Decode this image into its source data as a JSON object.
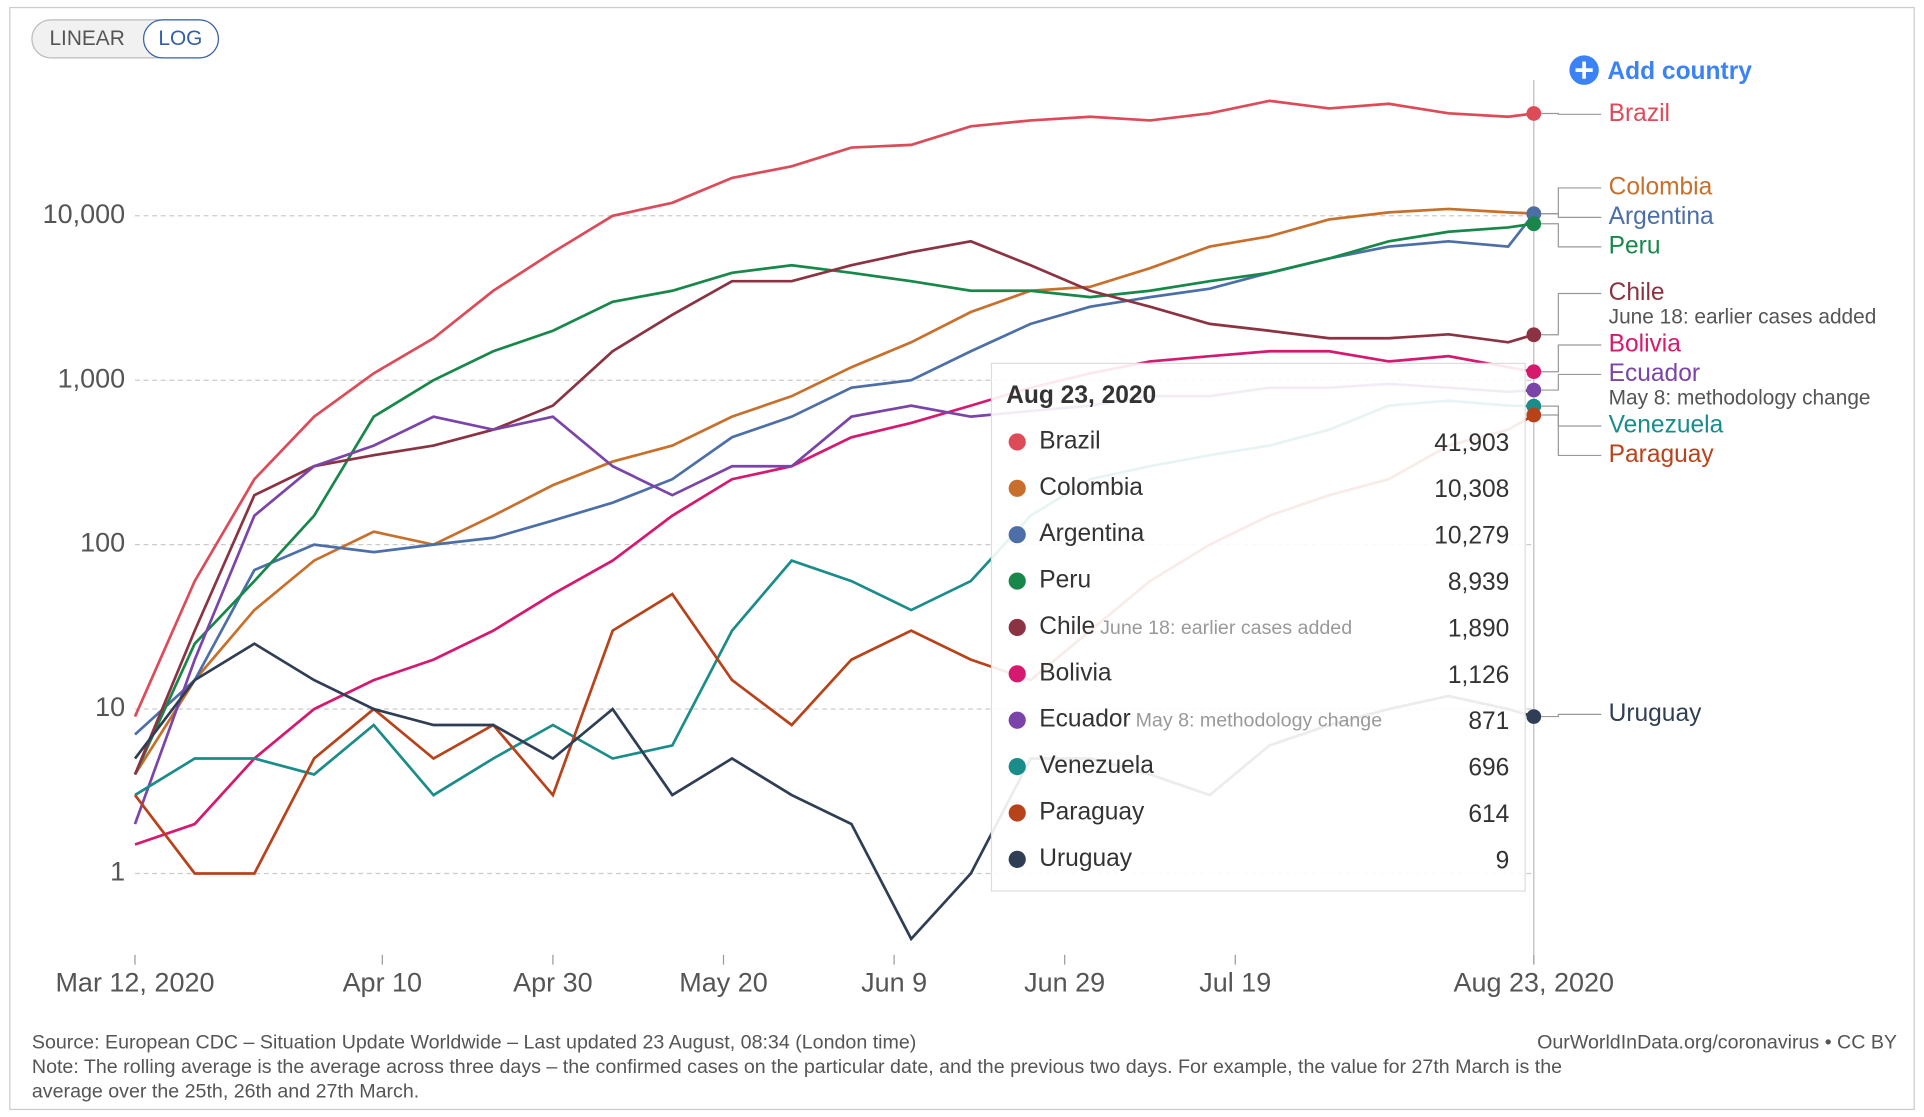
{
  "controls": {
    "linear": "LINEAR",
    "log": "LOG",
    "active": "log",
    "add_country": "Add country"
  },
  "chart_data": {
    "type": "line",
    "log_scale": true,
    "grid": true,
    "x": [
      "2020-03-12",
      "2020-03-19",
      "2020-03-26",
      "2020-04-02",
      "2020-04-09",
      "2020-04-16",
      "2020-04-23",
      "2020-04-30",
      "2020-05-07",
      "2020-05-14",
      "2020-05-21",
      "2020-05-28",
      "2020-06-04",
      "2020-06-11",
      "2020-06-18",
      "2020-06-25",
      "2020-07-02",
      "2020-07-09",
      "2020-07-16",
      "2020-07-23",
      "2020-07-30",
      "2020-08-06",
      "2020-08-13",
      "2020-08-20",
      "2020-08-23"
    ],
    "xlim": [
      "2020-03-12",
      "2020-08-23"
    ],
    "xticks": [
      {
        "value": "2020-03-12",
        "label": "Mar 12, 2020"
      },
      {
        "value": "2020-04-10",
        "label": "Apr 10"
      },
      {
        "value": "2020-04-30",
        "label": "Apr 30"
      },
      {
        "value": "2020-05-20",
        "label": "May 20"
      },
      {
        "value": "2020-06-09",
        "label": "Jun 9"
      },
      {
        "value": "2020-06-29",
        "label": "Jun 29"
      },
      {
        "value": "2020-07-19",
        "label": "Jul 19"
      },
      {
        "value": "2020-08-23",
        "label": "Aug 23, 2020"
      }
    ],
    "ylim": [
      0.32,
      67000
    ],
    "yticks": [
      1,
      10,
      {
        "value": 100,
        "label": "100"
      },
      {
        "value": 1000,
        "label": "1,000"
      },
      {
        "value": 10000,
        "label": "10,000"
      }
    ],
    "series": [
      {
        "name": "Brazil",
        "color": "#dd4b59",
        "values": [
          9,
          60,
          250,
          600,
          1100,
          1800,
          3500,
          6000,
          10000,
          12000,
          17000,
          20000,
          26000,
          27000,
          35000,
          38000,
          40000,
          38000,
          42000,
          50000,
          45000,
          48000,
          42000,
          40000,
          41903
        ]
      },
      {
        "name": "Colombia",
        "color": "#c8702b",
        "values": [
          4,
          15,
          40,
          80,
          120,
          100,
          150,
          230,
          320,
          400,
          600,
          800,
          1200,
          1700,
          2600,
          3500,
          3700,
          4800,
          6500,
          7500,
          9500,
          10500,
          11000,
          10500,
          10308
        ]
      },
      {
        "name": "Argentina",
        "color": "#4c6fa8",
        "values": [
          7,
          15,
          70,
          100,
          90,
          100,
          110,
          140,
          180,
          250,
          450,
          600,
          900,
          1000,
          1500,
          2200,
          2800,
          3200,
          3600,
          4500,
          5500,
          6500,
          7000,
          6500,
          10279
        ]
      },
      {
        "name": "Peru",
        "color": "#18884a",
        "values": [
          4,
          25,
          60,
          150,
          600,
          1000,
          1500,
          2000,
          3000,
          3500,
          4500,
          5000,
          4500,
          4000,
          3500,
          3500,
          3200,
          3500,
          4000,
          4500,
          5500,
          7000,
          8000,
          8500,
          8939
        ]
      },
      {
        "name": "Chile",
        "color": "#8b3343",
        "annotation": "June 18: earlier cases added",
        "values": [
          4,
          30,
          200,
          300,
          350,
          400,
          500,
          700,
          1500,
          2500,
          4000,
          4000,
          5000,
          6000,
          7000,
          5000,
          3500,
          2800,
          2200,
          2000,
          1800,
          1800,
          1900,
          1700,
          1890
        ]
      },
      {
        "name": "Bolivia",
        "color": "#d6186f",
        "values": [
          1.5,
          2,
          5,
          10,
          15,
          20,
          30,
          50,
          80,
          150,
          250,
          300,
          450,
          550,
          700,
          900,
          1100,
          1300,
          1400,
          1500,
          1500,
          1300,
          1400,
          1200,
          1126
        ]
      },
      {
        "name": "Ecuador",
        "color": "#7b44a8",
        "annotation": "May 8: methodology change",
        "values": [
          2,
          20,
          150,
          300,
          400,
          600,
          500,
          600,
          300,
          200,
          300,
          300,
          600,
          700,
          600,
          650,
          700,
          800,
          800,
          900,
          900,
          950,
          900,
          850,
          871
        ]
      },
      {
        "name": "Venezuela",
        "color": "#1a8c8a",
        "values": [
          3,
          5,
          5,
          4,
          8,
          3,
          5,
          8,
          5,
          6,
          30,
          80,
          60,
          40,
          60,
          150,
          250,
          300,
          350,
          400,
          500,
          700,
          750,
          700,
          696
        ]
      },
      {
        "name": "Paraguay",
        "color": "#b8421a",
        "values": [
          3,
          1,
          1,
          5,
          10,
          5,
          8,
          3,
          30,
          50,
          15,
          8,
          20,
          30,
          20,
          15,
          30,
          60,
          100,
          150,
          200,
          250,
          400,
          500,
          614
        ]
      },
      {
        "name": "Uruguay",
        "color": "#2f3e55",
        "values": [
          5,
          15,
          25,
          15,
          10,
          8,
          8,
          5,
          10,
          3,
          5,
          3,
          2,
          0.4,
          1,
          5,
          5,
          4,
          3,
          6,
          8,
          10,
          12,
          10,
          9
        ]
      }
    ],
    "tooltip": {
      "date": "Aug 23, 2020",
      "value_labels": [
        "41,903",
        "10,308",
        "10,279",
        "8,939",
        "1,890",
        "1,126",
        "871",
        "696",
        "614",
        "9"
      ]
    }
  },
  "footer": {
    "source": "Source: European CDC – Situation Update Worldwide – Last updated 23 August, 08:34 (London time)",
    "credit": "OurWorldInData.org/coronavirus • CC BY",
    "note_line1": "Note: The rolling average is the average across three days – the confirmed cases on the particular date, and the previous two days. For example, the value for 27th March is the",
    "note_line2": "average over the 25th, 26th and 27th March."
  }
}
